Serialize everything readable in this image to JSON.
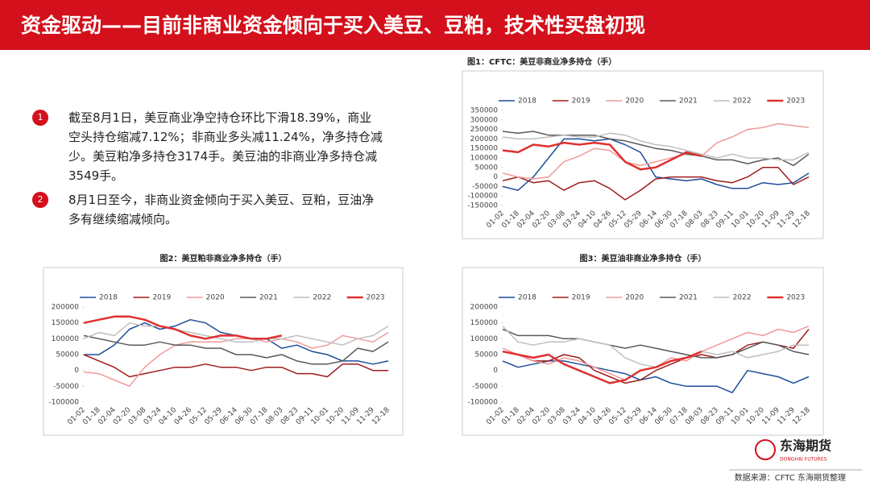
{
  "header": {
    "title": "资金驱动——目前非商业资金倾向于买入美豆、豆粕，技术性买盘初现"
  },
  "bullets": [
    {
      "number": "1",
      "text": "截至8月1日，美豆商业净空持仓环比下滑18.39%，商业空头持仓缩减7.12%；非商业多头减11.24%，净多持仓减少。美豆粕净多持仓3174手。美豆油的非商业净多持仓减3549手。"
    },
    {
      "number": "2",
      "text": "8月1日至今，非商业资金倾向于买入美豆、豆粕，豆油净多有继续缩减倾向。"
    }
  ],
  "source": "数据来源：CFTC 东海期货整理",
  "logo": {
    "name": "东海期货",
    "sub": "DONGHAI FUTURES"
  },
  "chart_data": [
    {
      "type": "line",
      "title": "图1：CFTC：美豆非商业净多持仓（手）",
      "categories": [
        "01-02",
        "01-18",
        "02-04",
        "02-20",
        "03-08",
        "03-24",
        "04-10",
        "04-26",
        "05-12",
        "05-29",
        "06-14",
        "06-30",
        "07-18",
        "08-03",
        "08-23",
        "09-11",
        "10-01",
        "10-20",
        "11-09",
        "11-29",
        "12-18"
      ],
      "ylim": [
        -150000,
        350000
      ],
      "yticks": [
        -150000,
        -100000,
        -50000,
        0,
        50000,
        100000,
        150000,
        200000,
        250000,
        300000,
        350000
      ],
      "series": [
        {
          "name": "2018",
          "color": "#1f4e9a",
          "values": [
            -50000,
            -70000,
            0,
            100000,
            200000,
            200000,
            190000,
            200000,
            170000,
            130000,
            0,
            -10000,
            -20000,
            -10000,
            -40000,
            -60000,
            -60000,
            -30000,
            -40000,
            -30000,
            20000
          ]
        },
        {
          "name": "2019",
          "color": "#9e1c1c",
          "values": [
            -20000,
            0,
            -30000,
            -20000,
            -70000,
            -30000,
            -20000,
            -60000,
            -120000,
            -70000,
            -10000,
            0,
            0,
            0,
            -20000,
            -30000,
            0,
            50000,
            50000,
            -40000,
            0
          ]
        },
        {
          "name": "2020",
          "color": "#f19a9a",
          "values": [
            20000,
            0,
            -10000,
            0,
            80000,
            110000,
            150000,
            140000,
            80000,
            60000,
            80000,
            100000,
            120000,
            110000,
            180000,
            210000,
            250000,
            260000,
            280000,
            270000,
            260000
          ]
        },
        {
          "name": "2021",
          "color": "#595959",
          "values": [
            240000,
            230000,
            240000,
            220000,
            220000,
            220000,
            220000,
            200000,
            190000,
            170000,
            150000,
            140000,
            120000,
            110000,
            90000,
            90000,
            70000,
            90000,
            100000,
            60000,
            120000
          ]
        },
        {
          "name": "2022",
          "color": "#bfbfbf",
          "values": [
            210000,
            200000,
            200000,
            210000,
            220000,
            210000,
            210000,
            230000,
            220000,
            190000,
            170000,
            160000,
            140000,
            120000,
            100000,
            120000,
            100000,
            100000,
            90000,
            90000,
            130000
          ]
        },
        {
          "name": "2023",
          "color": "#e03030",
          "values": [
            140000,
            130000,
            170000,
            160000,
            180000,
            170000,
            180000,
            170000,
            80000,
            40000,
            50000,
            90000,
            130000,
            110000,
            null,
            null,
            null,
            null,
            null,
            null,
            null
          ]
        }
      ]
    },
    {
      "type": "line",
      "title": "图2：美豆粕非商业净多持仓（手）",
      "categories": [
        "01-02",
        "01-18",
        "02-04",
        "02-20",
        "03-08",
        "03-24",
        "04-10",
        "04-26",
        "05-12",
        "05-29",
        "06-14",
        "06-30",
        "07-18",
        "08-03",
        "08-23",
        "09-11",
        "10-01",
        "10-20",
        "11-09",
        "11-29",
        "12-18"
      ],
      "ylim": [
        -100000,
        200000
      ],
      "yticks": [
        -100000,
        -50000,
        0,
        50000,
        100000,
        150000,
        200000
      ],
      "series": [
        {
          "name": "2018",
          "color": "#1f4e9a",
          "values": [
            50000,
            50000,
            80000,
            130000,
            150000,
            130000,
            140000,
            160000,
            150000,
            120000,
            110000,
            100000,
            100000,
            70000,
            80000,
            60000,
            50000,
            30000,
            30000,
            20000,
            30000
          ]
        },
        {
          "name": "2019",
          "color": "#9e1c1c",
          "values": [
            50000,
            30000,
            10000,
            -20000,
            -10000,
            0,
            10000,
            10000,
            20000,
            10000,
            10000,
            0,
            10000,
            10000,
            -10000,
            -10000,
            -20000,
            20000,
            20000,
            0,
            0
          ]
        },
        {
          "name": "2020",
          "color": "#f19a9a",
          "values": [
            -5000,
            -10000,
            -30000,
            -50000,
            10000,
            50000,
            80000,
            90000,
            90000,
            90000,
            100000,
            100000,
            90000,
            100000,
            90000,
            70000,
            80000,
            110000,
            100000,
            90000,
            120000
          ]
        },
        {
          "name": "2021",
          "color": "#595959",
          "values": [
            110000,
            100000,
            90000,
            80000,
            80000,
            90000,
            80000,
            80000,
            70000,
            70000,
            50000,
            50000,
            40000,
            50000,
            30000,
            20000,
            20000,
            30000,
            70000,
            60000,
            90000
          ]
        },
        {
          "name": "2022",
          "color": "#bfbfbf",
          "values": [
            100000,
            120000,
            110000,
            150000,
            140000,
            140000,
            130000,
            120000,
            110000,
            100000,
            90000,
            90000,
            100000,
            100000,
            110000,
            100000,
            90000,
            80000,
            100000,
            110000,
            140000
          ]
        },
        {
          "name": "2023",
          "color": "#e03030",
          "values": [
            150000,
            160000,
            170000,
            170000,
            160000,
            140000,
            130000,
            110000,
            100000,
            110000,
            110000,
            100000,
            100000,
            110000,
            null,
            null,
            null,
            null,
            null,
            null,
            null
          ]
        }
      ]
    },
    {
      "type": "line",
      "title": "图3：美豆油非商业净多持仓（手）",
      "categories": [
        "01-02",
        "01-18",
        "02-04",
        "02-20",
        "03-08",
        "03-24",
        "04-10",
        "04-26",
        "05-12",
        "05-29",
        "06-14",
        "06-30",
        "07-18",
        "08-03",
        "08-23",
        "09-11",
        "10-01",
        "10-20",
        "11-09",
        "11-29",
        "12-18"
      ],
      "ylim": [
        -100000,
        200000
      ],
      "yticks": [
        -100000,
        -50000,
        0,
        50000,
        100000,
        150000,
        200000
      ],
      "series": [
        {
          "name": "2018",
          "color": "#1f4e9a",
          "values": [
            30000,
            10000,
            20000,
            30000,
            30000,
            20000,
            10000,
            0,
            -10000,
            -30000,
            -20000,
            -40000,
            -50000,
            -50000,
            -50000,
            -70000,
            0,
            -10000,
            -20000,
            -40000,
            -20000
          ]
        },
        {
          "name": "2019",
          "color": "#9e1c1c",
          "values": [
            60000,
            50000,
            30000,
            30000,
            50000,
            40000,
            0,
            -20000,
            -40000,
            -30000,
            0,
            20000,
            40000,
            50000,
            40000,
            50000,
            80000,
            90000,
            80000,
            70000,
            130000
          ]
        },
        {
          "name": "2020",
          "color": "#f19a9a",
          "values": [
            70000,
            50000,
            30000,
            20000,
            40000,
            30000,
            10000,
            -10000,
            -30000,
            0,
            10000,
            40000,
            30000,
            60000,
            80000,
            100000,
            120000,
            110000,
            130000,
            120000,
            140000
          ]
        },
        {
          "name": "2021",
          "color": "#595959",
          "values": [
            130000,
            110000,
            110000,
            110000,
            100000,
            100000,
            90000,
            80000,
            70000,
            80000,
            70000,
            60000,
            50000,
            40000,
            40000,
            50000,
            70000,
            90000,
            80000,
            60000,
            50000
          ]
        },
        {
          "name": "2022",
          "color": "#bfbfbf",
          "values": [
            140000,
            90000,
            80000,
            90000,
            90000,
            100000,
            90000,
            80000,
            40000,
            20000,
            10000,
            30000,
            40000,
            60000,
            50000,
            60000,
            40000,
            50000,
            60000,
            80000,
            80000
          ]
        },
        {
          "name": "2023",
          "color": "#e03030",
          "values": [
            60000,
            50000,
            40000,
            50000,
            20000,
            0,
            -20000,
            -40000,
            -30000,
            0,
            10000,
            30000,
            40000,
            60000,
            null,
            null,
            null,
            null,
            null,
            null,
            null
          ]
        }
      ]
    }
  ]
}
